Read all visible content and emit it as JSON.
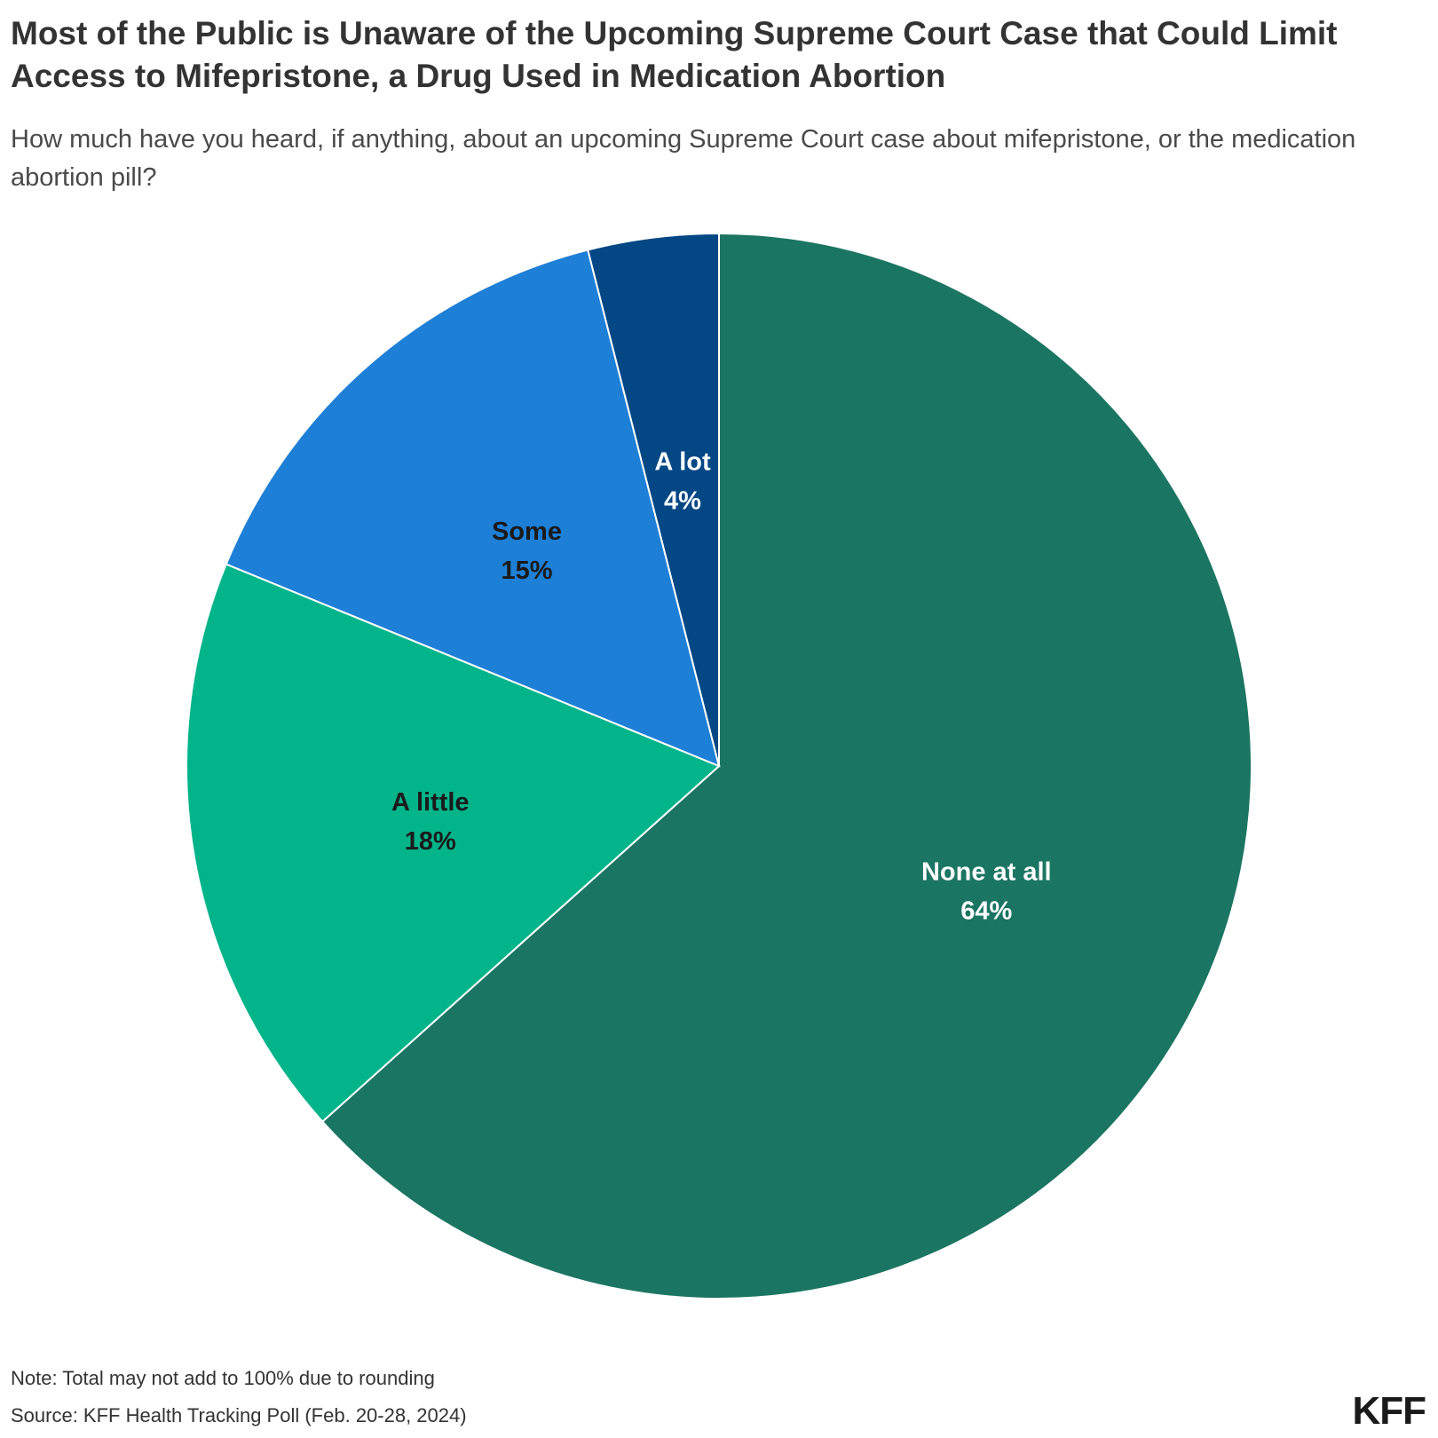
{
  "chart_data": {
    "type": "pie",
    "title": "Most of the Public is Unaware of the Upcoming Supreme Court Case that Could Limit Access to Mifepristone, a Drug Used in Medication Abortion",
    "subtitle": "How much have you heard, if anything, about an upcoming Supreme Court case about mifepristone, or the medication abortion pill?",
    "start_angle_deg": 0,
    "direction": "clockwise",
    "slices": [
      {
        "label": "None at all",
        "value": 64,
        "value_label": "64%",
        "color": "#1b7563",
        "label_color": "#ffffff"
      },
      {
        "label": "A little",
        "value": 18,
        "value_label": "18%",
        "color": "#02b48a",
        "label_color": "#1a1a1a"
      },
      {
        "label": "Some",
        "value": 15,
        "value_label": "15%",
        "color": "#1e7fd6",
        "label_color": "#1a1a1a"
      },
      {
        "label": "A lot",
        "value": 4,
        "value_label": "4%",
        "color": "#034784",
        "label_color": "#ffffff"
      }
    ]
  },
  "footer": {
    "note": "Note: Total may not add to 100% due to rounding",
    "source": "Source: KFF Health Tracking Poll (Feb. 20-28, 2024)",
    "logo": "KFF"
  }
}
